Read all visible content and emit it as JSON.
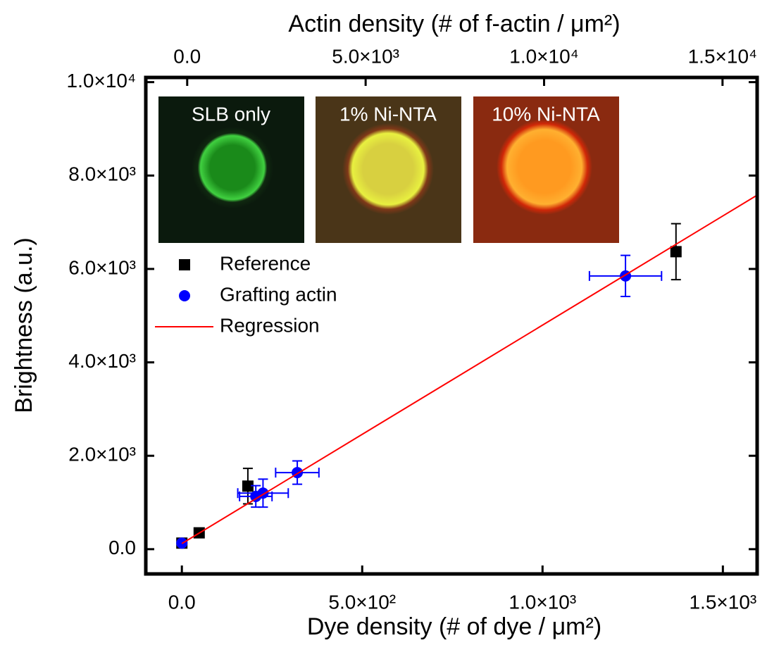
{
  "chart_data": {
    "type": "scatter",
    "x_label": "Dye density (# of dye / μm²)",
    "x2_label": "Actin density (# of f-actin / μm²)",
    "y_label": "Brightness (a.u.)",
    "xlim": [
      -100,
      1595
    ],
    "x2lim": [
      -1160,
      15970
    ],
    "ylim": [
      -530,
      10100
    ],
    "xticks": [
      {
        "value": 0,
        "label": "0.0"
      },
      {
        "value": 500,
        "label": "5.0×10²"
      },
      {
        "value": 1000,
        "label": "1.0×10³"
      },
      {
        "value": 1500,
        "label": "1.5×10³"
      }
    ],
    "x2ticks": [
      {
        "value": 0,
        "label": "0.0"
      },
      {
        "value": 5000,
        "label": "5.0×10³"
      },
      {
        "value": 10000,
        "label": "1.0×10⁴"
      },
      {
        "value": 15000,
        "label": "1.5×10⁴"
      }
    ],
    "yticks": [
      {
        "value": 0,
        "label": "0.0"
      },
      {
        "value": 2000,
        "label": "2.0×10³"
      },
      {
        "value": 4000,
        "label": "4.0×10³"
      },
      {
        "value": 6000,
        "label": "6.0×10³"
      },
      {
        "value": 8000,
        "label": "8.0×10³"
      },
      {
        "value": 10000,
        "label": "1.0×10⁴"
      }
    ],
    "inset_labels": [
      "SLB only",
      "1% Ni-NTA",
      "10% Ni-NTA"
    ],
    "series": [
      {
        "name": "Reference",
        "color": "#000000",
        "marker": "square",
        "x": [
          0,
          48,
          183,
          1370
        ],
        "values": [
          130,
          350,
          1350,
          6370
        ],
        "xerr": [
          null,
          null,
          null,
          null
        ],
        "yerr": [
          null,
          null,
          380,
          600
        ]
      },
      {
        "name": "Grafting actin",
        "color": "#0000ff",
        "marker": "circle",
        "x": [
          0,
          205,
          225,
          320,
          1230
        ],
        "values": [
          130,
          1130,
          1200,
          1640,
          5850
        ],
        "xerr": [
          null,
          45,
          70,
          60,
          100
        ],
        "yerr": [
          null,
          230,
          300,
          250,
          440
        ]
      },
      {
        "name": "Regression",
        "color": "#ff0000",
        "marker": "line",
        "x": [
          0,
          1595
        ],
        "values": [
          120,
          7580
        ]
      }
    ]
  }
}
